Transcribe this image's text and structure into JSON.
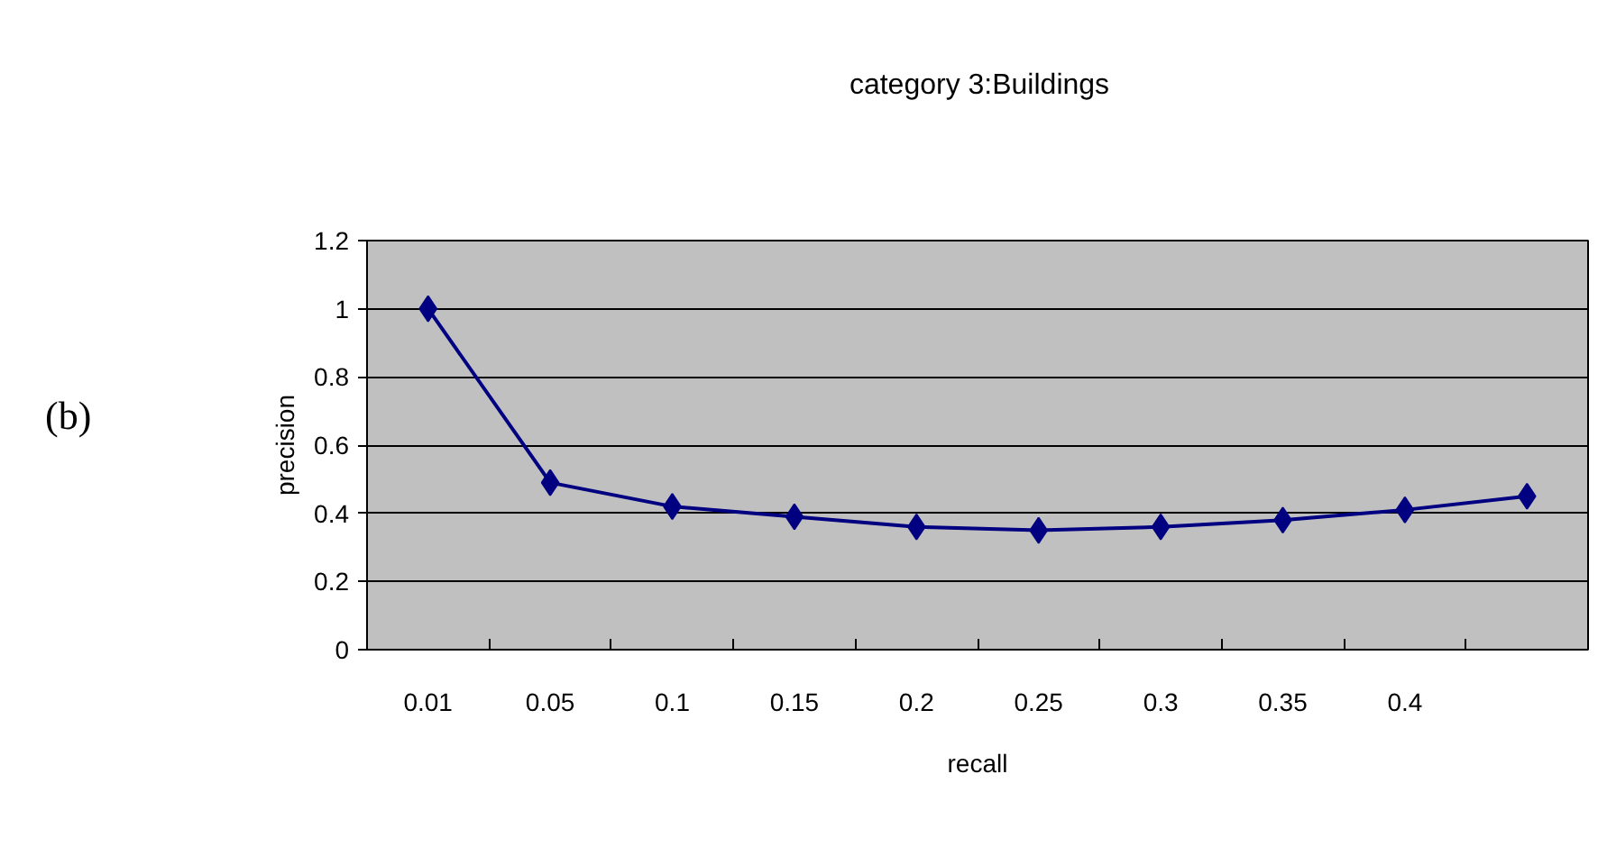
{
  "chart_data": {
    "type": "line",
    "title": "category 3:Buildings",
    "xlabel": "recall",
    "ylabel": "precision",
    "categories": [
      "0.01",
      "0.05",
      "0.1",
      "0.15",
      "0.2",
      "0.25",
      "0.3",
      "0.35",
      "0.4",
      null
    ],
    "series": [
      {
        "color": "#000080",
        "values": [
          1.0,
          0.49,
          0.42,
          0.39,
          0.36,
          0.35,
          0.36,
          0.38,
          0.41,
          0.45
        ]
      }
    ],
    "ylim": [
      0,
      1.2
    ],
    "yticks": [
      0,
      0.2,
      0.4,
      0.6,
      0.8,
      1,
      1.2
    ],
    "grid": "y",
    "marker": "diamond",
    "line_style": "solid",
    "annotations": [
      "(b)"
    ]
  }
}
